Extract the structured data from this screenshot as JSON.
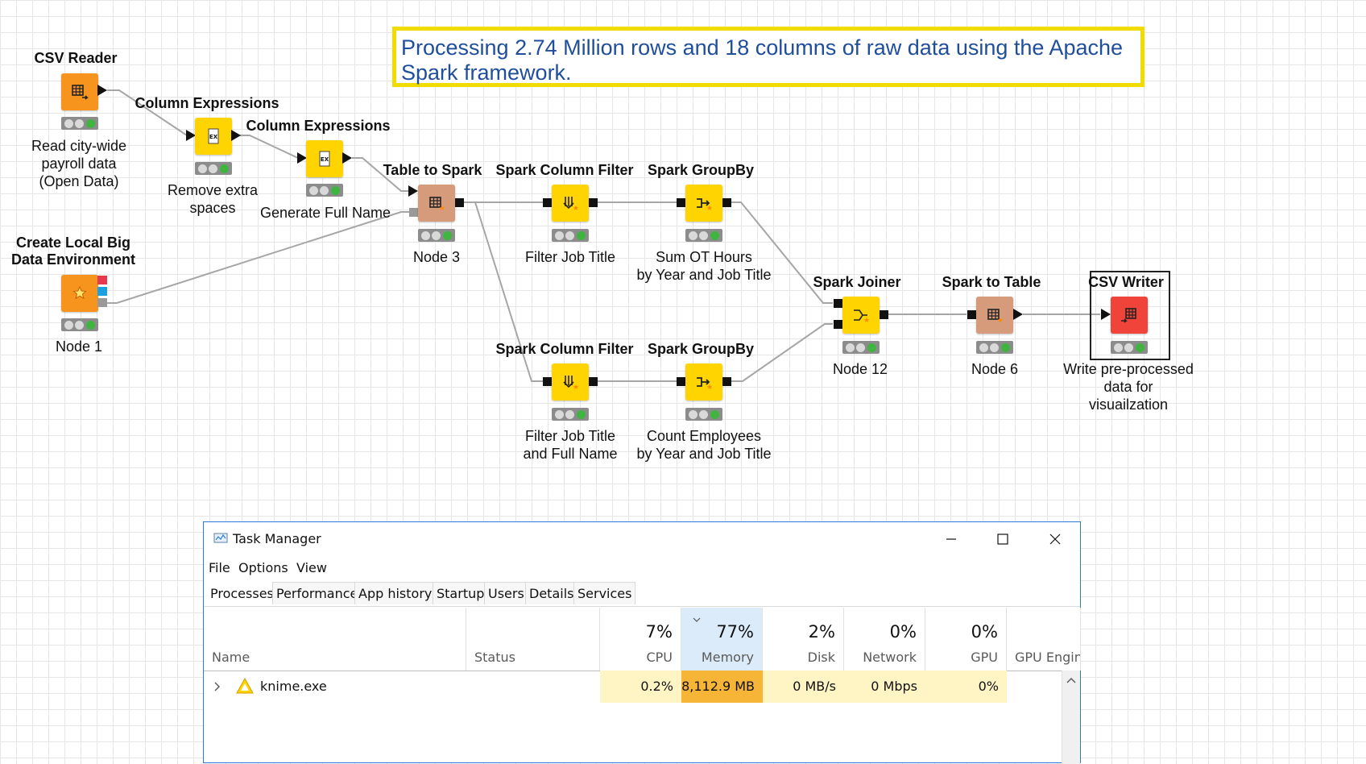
{
  "workflow": {
    "annotation": "Processing 2.74 Million rows and 18 columns of raw data using the Apache Spark framework.",
    "nodes": {
      "csv_reader": {
        "title": "CSV Reader",
        "label": "Read city-wide\npayroll data\n(Open Data)",
        "color": "#f7941d"
      },
      "col_expr_1": {
        "title": "Column Expressions",
        "label": "Remove extra\nspaces",
        "color": "#ffd400"
      },
      "col_expr_2": {
        "title": "Column Expressions",
        "label": "Generate Full Name",
        "color": "#ffd400"
      },
      "create_env": {
        "title": "Create Local Big\nData Environment",
        "label": "Node 1",
        "color": "#f7941d"
      },
      "table_to_spark": {
        "title": "Table to Spark",
        "label": "Node 3",
        "color": "#d59b7a"
      },
      "spark_filter_1": {
        "title": "Spark Column Filter",
        "label": "Filter Job Title",
        "color": "#ffd400"
      },
      "spark_groupby_1": {
        "title": "Spark GroupBy",
        "label": "Sum OT Hours\nby Year and Job Title",
        "color": "#ffd400"
      },
      "spark_filter_2": {
        "title": "Spark Column Filter",
        "label": "Filter Job Title\nand Full Name",
        "color": "#ffd400"
      },
      "spark_groupby_2": {
        "title": "Spark GroupBy",
        "label": "Count Employees\nby Year and Job Title",
        "color": "#ffd400"
      },
      "spark_joiner": {
        "title": "Spark Joiner",
        "label": "Node 12",
        "color": "#ffd400"
      },
      "spark_to_table": {
        "title": "Spark to Table",
        "label": "Node 6",
        "color": "#d59b7a"
      },
      "csv_writer": {
        "title": "CSV Writer",
        "label": "Write pre-processed\ndata for\nvisuailzation",
        "color": "#f0443a"
      }
    }
  },
  "task_manager": {
    "title": "Task Manager",
    "menu": [
      "File",
      "Options",
      "View"
    ],
    "tabs": [
      "Processes",
      "Performance",
      "App history",
      "Startup",
      "Users",
      "Details",
      "Services"
    ],
    "columns": {
      "name": "Name",
      "status": "Status",
      "cpu": {
        "pct": "7%",
        "label": "CPU"
      },
      "memory": {
        "pct": "77%",
        "label": "Memory"
      },
      "disk": {
        "pct": "2%",
        "label": "Disk"
      },
      "network": {
        "pct": "0%",
        "label": "Network"
      },
      "gpu": {
        "pct": "0%",
        "label": "GPU"
      },
      "gpu_engine": {
        "label": "GPU Engine"
      }
    },
    "row": {
      "name": "knime.exe",
      "cpu": "0.2%",
      "memory": "8,112.9 MB",
      "disk": "0 MB/s",
      "network": "0 Mbps",
      "gpu": "0%"
    },
    "colors": {
      "heat_light": "#fff4c4",
      "heat_strong": "#f7b538",
      "heat_mid": "#ffe9a0",
      "accent": "#2b7bd6"
    }
  }
}
